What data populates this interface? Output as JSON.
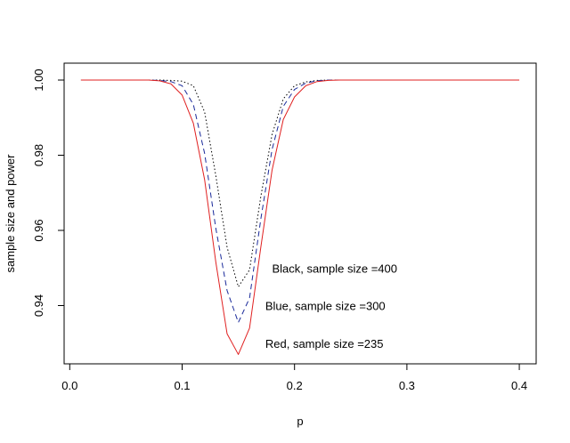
{
  "chart_data": {
    "type": "line",
    "title": "",
    "xlabel": "p",
    "ylabel": "sample size and power",
    "xlim": [
      -0.005,
      0.415
    ],
    "ylim": [
      0.9245,
      1.0045
    ],
    "x_ticks": [
      0.0,
      0.1,
      0.2,
      0.3,
      0.4
    ],
    "x_tick_labels": [
      "0.0",
      "0.1",
      "0.2",
      "0.3",
      "0.4"
    ],
    "y_ticks": [
      0.94,
      0.96,
      0.98,
      1.0
    ],
    "y_tick_labels": [
      "0.94",
      "0.96",
      "0.98",
      "1.00"
    ],
    "grid": false,
    "legend": "none",
    "x": [
      0.01,
      0.07,
      0.08,
      0.09,
      0.1,
      0.11,
      0.12,
      0.13,
      0.14,
      0.15,
      0.16,
      0.17,
      0.18,
      0.19,
      0.2,
      0.21,
      0.22,
      0.23,
      0.24,
      0.25,
      0.3,
      0.35,
      0.4
    ],
    "series": [
      {
        "sample_size": 400,
        "color": "#000000",
        "style": "dotted",
        "values": [
          1.0,
          1.0,
          1.0,
          0.9999,
          0.9997,
          0.9985,
          0.9915,
          0.9745,
          0.9555,
          0.945,
          0.9495,
          0.969,
          0.9855,
          0.995,
          0.9985,
          0.9995,
          0.9999,
          1.0,
          1.0,
          1.0,
          1.0,
          1.0,
          1.0
        ]
      },
      {
        "sample_size": 300,
        "color": "#1a2a9a",
        "style": "dashed",
        "values": [
          1.0,
          1.0,
          0.9999,
          0.9996,
          0.9985,
          0.9935,
          0.9805,
          0.9605,
          0.944,
          0.9355,
          0.942,
          0.963,
          0.9815,
          0.993,
          0.9975,
          0.9992,
          0.9998,
          1.0,
          1.0,
          1.0,
          1.0,
          1.0,
          1.0
        ]
      },
      {
        "sample_size": 235,
        "color": "#e02020",
        "style": "solid",
        "values": [
          1.0,
          1.0,
          0.9998,
          0.999,
          0.996,
          0.9885,
          0.9735,
          0.9515,
          0.9325,
          0.927,
          0.934,
          0.9555,
          0.976,
          0.9895,
          0.9955,
          0.9985,
          0.9996,
          0.9999,
          1.0,
          1.0,
          1.0,
          1.0,
          1.0
        ]
      }
    ],
    "annotations": [
      {
        "text": "Black, sample size =400",
        "x": 0.18,
        "y": 0.95
      },
      {
        "text": "Blue, sample size =300",
        "x": 0.174,
        "y": 0.94
      },
      {
        "text": "Red, sample size =235",
        "x": 0.174,
        "y": 0.93
      }
    ]
  }
}
